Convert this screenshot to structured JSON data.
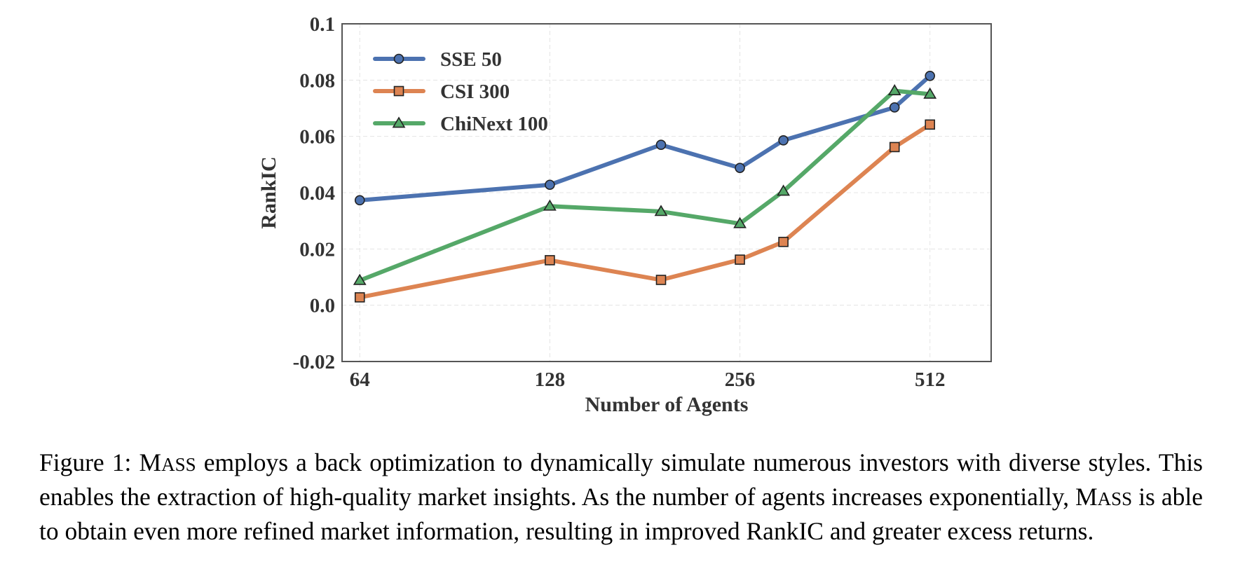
{
  "chart_data": {
    "type": "line",
    "title": "",
    "xlabel": "Number of Agents",
    "ylabel": "RankIC",
    "x_scale": "log2",
    "x_ticks": [
      64,
      128,
      256,
      512
    ],
    "x_tick_labels": [
      "64",
      "128",
      "256",
      "512"
    ],
    "xlim": [
      60,
      640
    ],
    "y_ticks": [
      -0.02,
      0.0,
      0.02,
      0.04,
      0.06,
      0.08,
      0.1
    ],
    "y_tick_labels": [
      "-0.02",
      "0.0",
      "0.02",
      "0.04",
      "0.06",
      "0.08",
      "0.1"
    ],
    "ylim": [
      -0.02,
      0.1
    ],
    "grid": true,
    "legend_position": "top-left",
    "series": [
      {
        "name": "SSE 50",
        "color": "#4c72b0",
        "marker": "circle",
        "x": [
          64,
          128,
          192,
          256,
          300,
          450,
          512
        ],
        "values": [
          0.0373,
          0.0428,
          0.057,
          0.0488,
          0.0586,
          0.0703,
          0.0815
        ]
      },
      {
        "name": "CSI 300",
        "color": "#dd8452",
        "marker": "square",
        "x": [
          64,
          128,
          192,
          256,
          300,
          450,
          512
        ],
        "values": [
          0.0028,
          0.016,
          0.009,
          0.0162,
          0.0225,
          0.0562,
          0.0642
        ]
      },
      {
        "name": "ChiNext 100",
        "color": "#55a868",
        "marker": "triangle",
        "x": [
          64,
          128,
          192,
          256,
          300,
          450,
          512
        ],
        "values": [
          0.0088,
          0.0352,
          0.0333,
          0.029,
          0.0405,
          0.0762,
          0.075
        ]
      }
    ]
  },
  "caption": {
    "prefix": "Figure 1: ",
    "name_big": "M",
    "name_small": "ASS",
    "part1": " employs a back optimization to dynamically simulate numerous investors with diverse styles. This enables the extraction of high-quality market insights. As the number of agents increases exponentially, ",
    "part2": " is able to obtain even more refined market information, resulting in improved RankIC and greater excess returns."
  }
}
